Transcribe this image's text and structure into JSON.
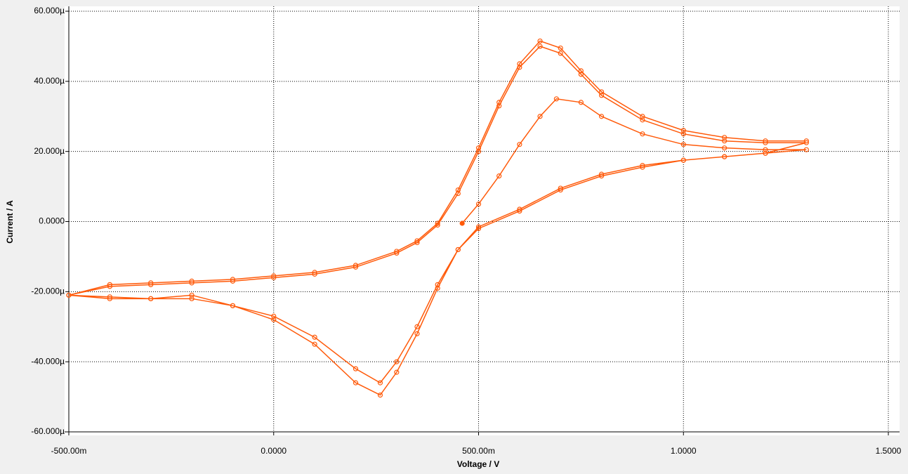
{
  "chart_data": {
    "type": "line",
    "x_label": "Voltage / V",
    "y_label": "Current / A",
    "xlim": [
      -0.5,
      1.5
    ],
    "xticks": [
      {
        "value": -0.5,
        "label": "-500.00m"
      },
      {
        "value": 0,
        "label": "0.0000"
      },
      {
        "value": 0.5,
        "label": "500.00m"
      },
      {
        "value": 1,
        "label": "1.0000"
      },
      {
        "value": 1.5,
        "label": "1.5000"
      }
    ],
    "ylim": [
      -6e-05,
      6e-05
    ],
    "yticks": [
      {
        "value": 6e-05,
        "label": "60.000µ"
      },
      {
        "value": 4e-05,
        "label": "40.000µ"
      },
      {
        "value": 2e-05,
        "label": "20.000µ"
      },
      {
        "value": 0,
        "label": "0.0000"
      },
      {
        "value": -2e-05,
        "label": "-20.000µ"
      },
      {
        "value": -4e-05,
        "label": "-40.000µ"
      },
      {
        "value": -6e-05,
        "label": "-60.000µ"
      }
    ],
    "grid": true,
    "x": [
      0.46,
      0.5,
      0.55,
      0.6,
      0.65,
      0.69,
      0.75,
      0.8,
      0.9,
      1.0,
      1.1,
      1.2,
      1.3,
      1.2,
      1.1,
      1.0,
      0.9,
      0.8,
      0.7,
      0.6,
      0.5,
      0.45,
      0.4,
      0.35,
      0.3,
      0.26,
      0.2,
      0.1,
      0.0,
      -0.1,
      -0.2,
      -0.3,
      -0.4,
      -0.5,
      -0.4,
      -0.3,
      -0.2,
      -0.1,
      0.0,
      0.1,
      0.2,
      0.3,
      0.35,
      0.4,
      0.45,
      0.5,
      0.55,
      0.6,
      0.65,
      0.7,
      0.75,
      0.8,
      0.9,
      1.0,
      1.1,
      1.2,
      1.3,
      1.2,
      1.1,
      1.0,
      0.9,
      0.8,
      0.7,
      0.6,
      0.5,
      0.45,
      0.4,
      0.35,
      0.3,
      0.26,
      0.2,
      0.1,
      0.0,
      -0.1,
      -0.2,
      -0.3,
      -0.4,
      -0.5,
      -0.4,
      -0.3,
      -0.2,
      -0.1,
      0.0,
      0.1,
      0.2,
      0.3,
      0.35,
      0.4,
      0.45,
      0.5,
      0.55,
      0.6,
      0.65,
      0.7,
      0.75,
      0.8,
      0.9,
      1.0,
      1.1,
      1.2,
      1.3
    ],
    "series": [
      {
        "color": "#ff5a0a",
        "values": [
          -5e-07,
          5e-06,
          1.3e-05,
          2.2e-05,
          3e-05,
          3.5e-05,
          3.4e-05,
          3e-05,
          2.5e-05,
          2.2e-05,
          2.1e-05,
          2.05e-05,
          2.05e-05,
          1.95e-05,
          1.85e-05,
          1.75e-05,
          1.55e-05,
          1.3e-05,
          9e-06,
          3e-06,
          -2e-06,
          -8e-06,
          -1.8e-05,
          -3e-05,
          -4e-05,
          -4.6e-05,
          -4.2e-05,
          -3.3e-05,
          -2.7e-05,
          -2.4e-05,
          -2.2e-05,
          -2.2e-05,
          -2.15e-05,
          -2.1e-05,
          -1.85e-05,
          -1.8e-05,
          -1.75e-05,
          -1.7e-05,
          -1.6e-05,
          -1.5e-05,
          -1.3e-05,
          -9e-06,
          -6e-06,
          -1e-06,
          8e-06,
          2e-05,
          3.3e-05,
          4.4e-05,
          5e-05,
          4.8e-05,
          4.2e-05,
          3.6e-05,
          2.9e-05,
          2.5e-05,
          2.3e-05,
          2.25e-05,
          2.25e-05,
          1.95e-05,
          1.85e-05,
          1.75e-05,
          1.6e-05,
          1.35e-05,
          9.5e-06,
          3.5e-06,
          -1.5e-06,
          -8e-06,
          -1.9e-05,
          -3.2e-05,
          -4.3e-05,
          -4.95e-05,
          -4.6e-05,
          -3.5e-05,
          -2.8e-05,
          -2.4e-05,
          -2.1e-05,
          -2.2e-05,
          -2.2e-05,
          -2.1e-05,
          -1.8e-05,
          -1.75e-05,
          -1.7e-05,
          -1.65e-05,
          -1.55e-05,
          -1.45e-05,
          -1.25e-05,
          -8.5e-06,
          -5.5e-06,
          -5e-07,
          9e-06,
          2.1e-05,
          3.4e-05,
          4.5e-05,
          5.15e-05,
          4.95e-05,
          4.3e-05,
          3.7e-05,
          3e-05,
          2.6e-05,
          2.4e-05,
          2.3e-05,
          2.3e-05
        ]
      }
    ]
  }
}
